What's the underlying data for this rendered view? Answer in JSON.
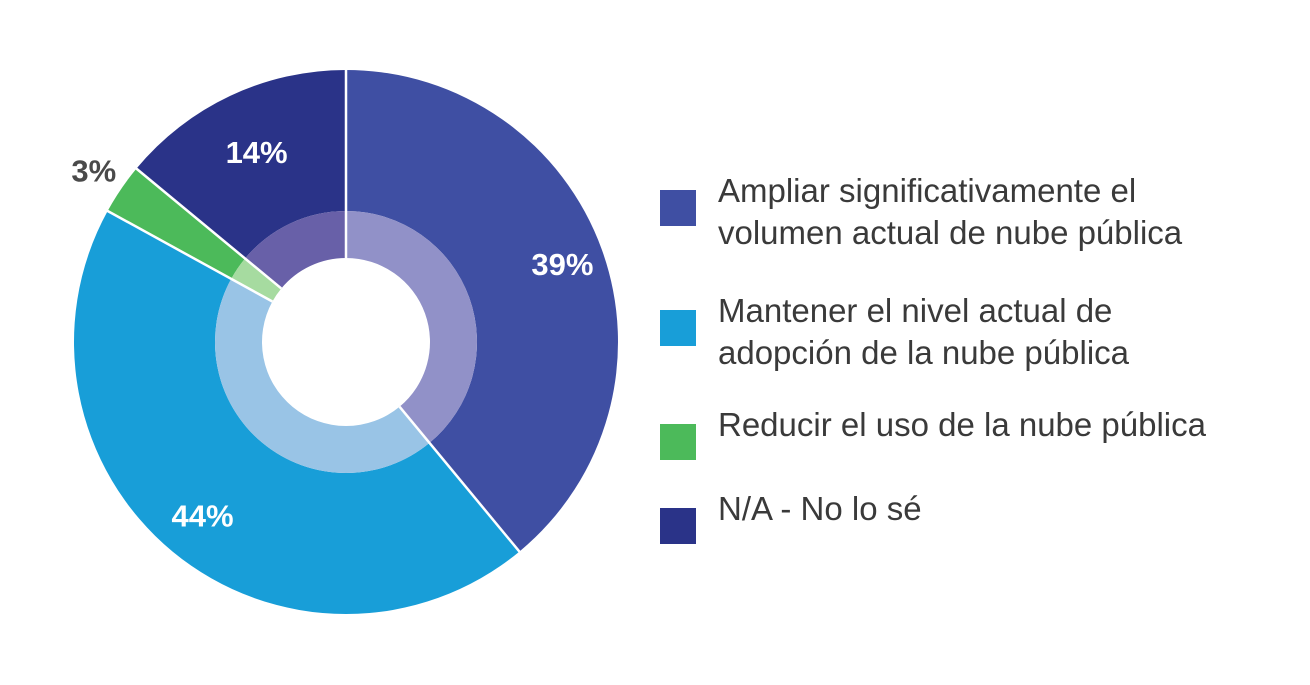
{
  "chart_data": {
    "type": "pie",
    "variant": "donut",
    "categories": [
      "Ampliar significativamente el volumen actual de nube pública",
      "Mantener el nivel actual de adopción de la nube pública",
      "Reducir el uso de la nube pública",
      "N/A - No lo sé"
    ],
    "values": [
      39,
      44,
      3,
      14
    ],
    "value_labels": [
      "39%",
      "44%",
      "3%",
      "14%"
    ],
    "colors": [
      "#3f4fa3",
      "#189ed8",
      "#4cba5a",
      "#2a3388"
    ],
    "inner_ring_colors": [
      "#9191c8",
      "#99c4e6",
      "#a6dba0",
      "#6860a8"
    ],
    "legend_position": "right"
  },
  "legend": {
    "items": [
      {
        "label": "Ampliar significativamente el\nvolumen actual de nube pública",
        "color": "#3f4fa3"
      },
      {
        "label": "Mantener el nivel actual de\nadopción de la nube pública",
        "color": "#189ed8"
      },
      {
        "label": "Reducir el uso de la nube pública",
        "color": "#4cba5a"
      },
      {
        "label": "N/A - No lo sé",
        "color": "#2a3388"
      }
    ]
  }
}
